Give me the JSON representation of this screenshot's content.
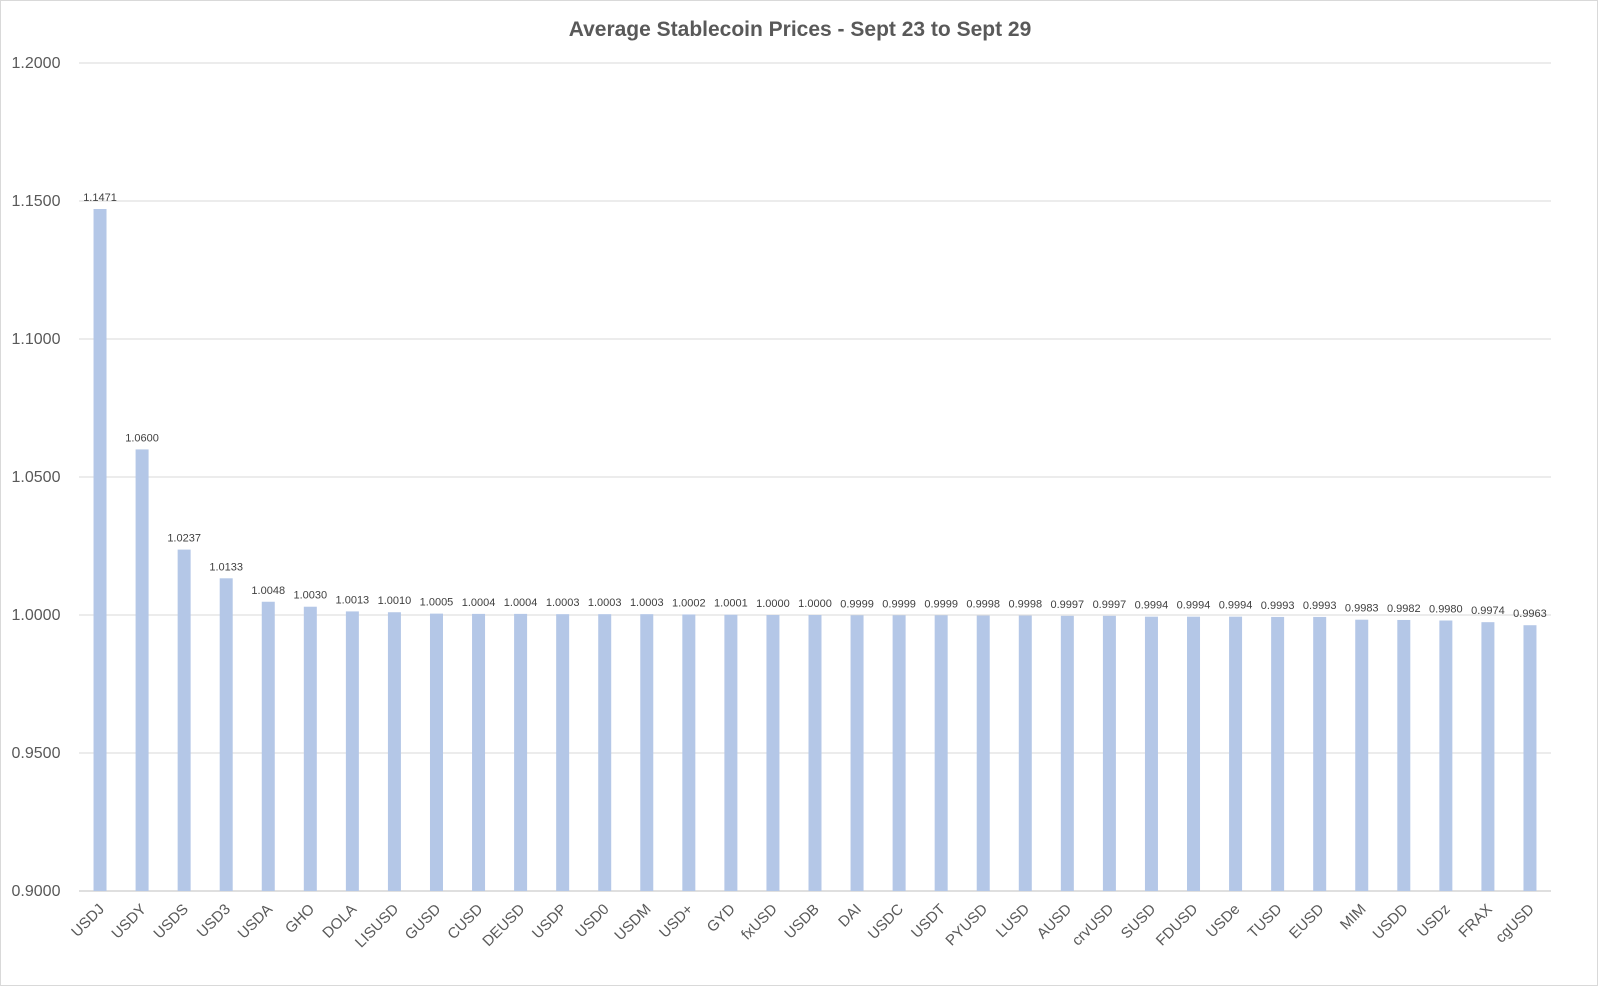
{
  "chart_data": {
    "type": "bar",
    "title": "Average Stablecoin Prices - Sept 23 to Sept 29",
    "xlabel": "",
    "ylabel": "",
    "ylim": [
      0.9,
      1.2
    ],
    "yticks": [
      "0.9000",
      "0.9500",
      "1.0000",
      "1.0500",
      "1.1000",
      "1.1500",
      "1.2000"
    ],
    "grid": true,
    "bar_color": "#b4c7e7",
    "categories": [
      "USDJ",
      "USDY",
      "USDS",
      "USD3",
      "USDA",
      "GHO",
      "DOLA",
      "LISUSD",
      "GUSD",
      "CUSD",
      "DEUSD",
      "USDP",
      "USD0",
      "USDM",
      "USD+",
      "GYD",
      "fxUSD",
      "USDB",
      "DAI",
      "USDC",
      "USDT",
      "PYUSD",
      "LUSD",
      "AUSD",
      "crvUSD",
      "SUSD",
      "FDUSD",
      "USDe",
      "TUSD",
      "EUSD",
      "MIM",
      "USDD",
      "USDz",
      "FRAX",
      "cgUSD"
    ],
    "values": [
      1.1471,
      1.06,
      1.0237,
      1.0133,
      1.0048,
      1.003,
      1.0013,
      1.001,
      1.0005,
      1.0004,
      1.0004,
      1.0003,
      1.0003,
      1.0003,
      1.0002,
      1.0001,
      1.0,
      1.0,
      0.9999,
      0.9999,
      0.9999,
      0.9998,
      0.9998,
      0.9997,
      0.9997,
      0.9994,
      0.9994,
      0.9994,
      0.9993,
      0.9993,
      0.9983,
      0.9982,
      0.998,
      0.9974,
      0.9963
    ],
    "data_labels": [
      "1.1471",
      "1.0600",
      "1.0237",
      "1.0133",
      "1.0048",
      "1.0030",
      "1.0013",
      "1.0010",
      "1.0005",
      "1.0004",
      "1.0004",
      "1.0003",
      "1.0003",
      "1.0003",
      "1.0002",
      "1.0001",
      "1.0000",
      "1.0000",
      "0.9999",
      "0.9999",
      "0.9999",
      "0.9998",
      "0.9998",
      "0.9997",
      "0.9997",
      "0.9994",
      "0.9994",
      "0.9994",
      "0.9993",
      "0.9993",
      "0.9983",
      "0.9982",
      "0.9980",
      "0.9974",
      "0.9963"
    ]
  }
}
